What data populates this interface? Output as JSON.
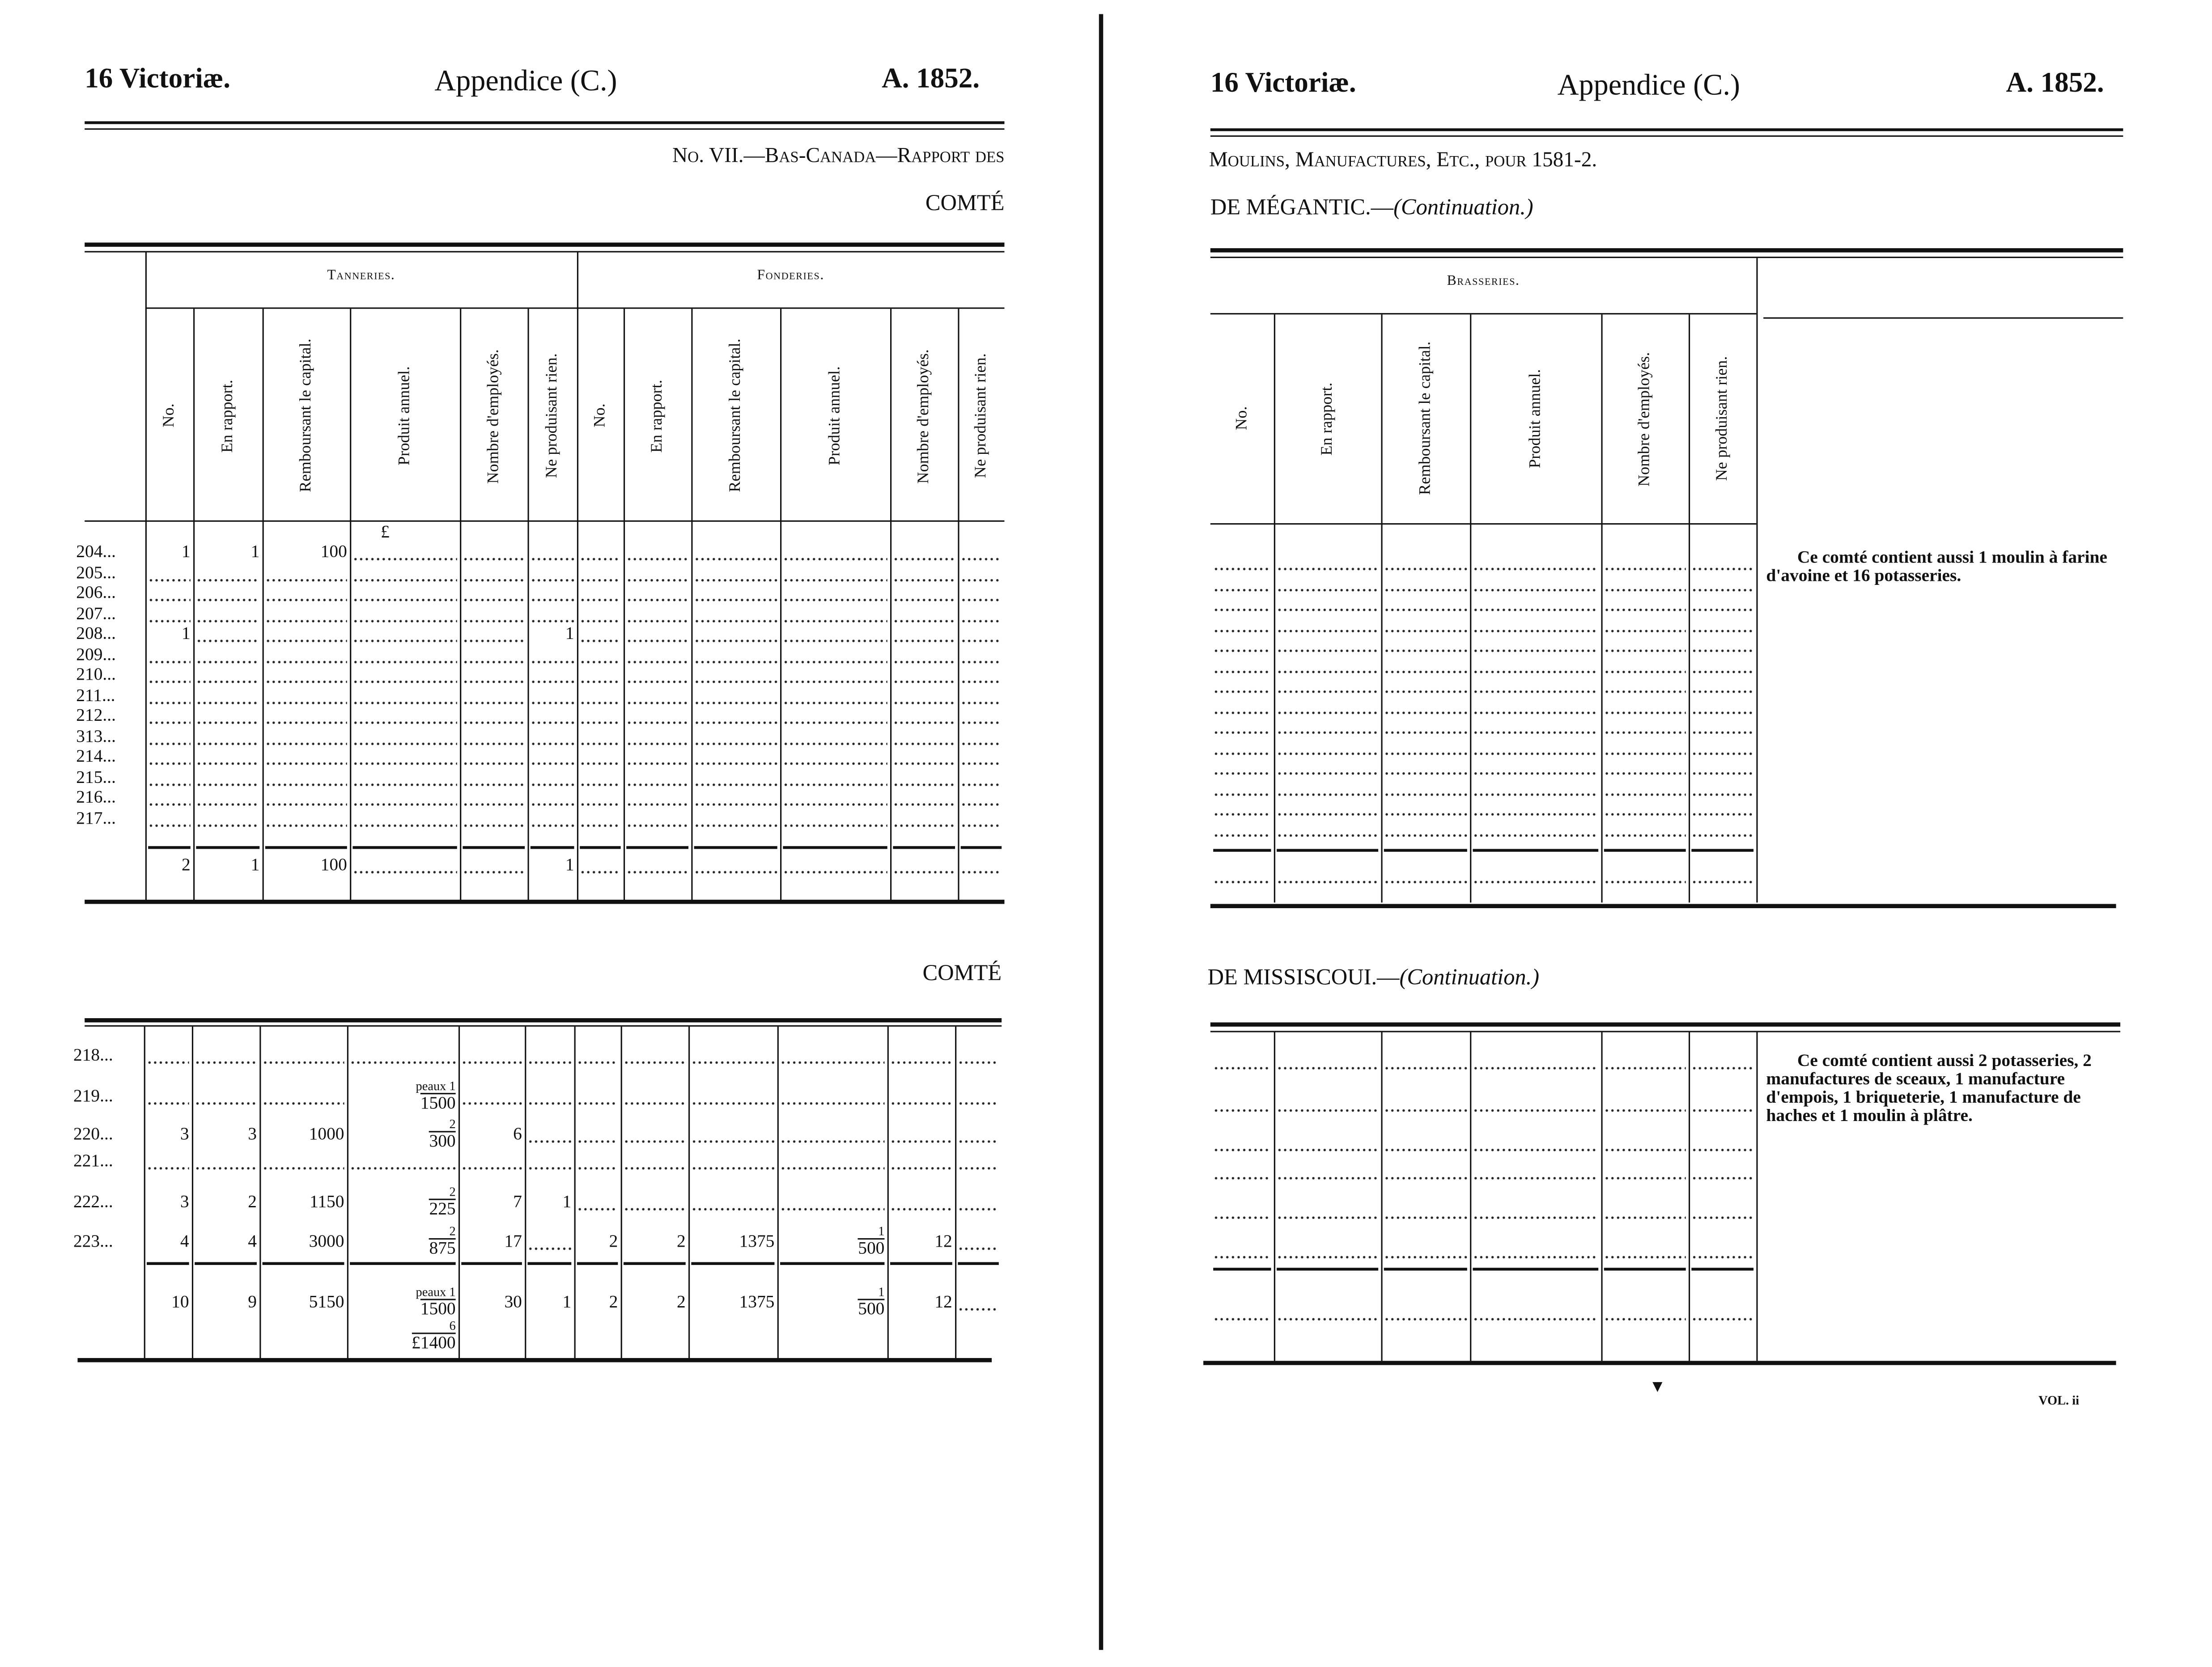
{
  "left_page": {
    "header": {
      "session": "16 Victoriæ.",
      "title": "Appendice (C.)",
      "year": "A. 1852."
    },
    "subtitle": "No. VII.—Bas-Canada—Rapport des",
    "section1": {
      "heading": "COMTÉ",
      "groups": [
        "Tanneries.",
        "Fonderies."
      ],
      "columns": [
        "No.",
        "En rapport.",
        "Remboursant le capital.",
        "Produit annuel.",
        "Nombre d'employés.",
        "Ne produisant rien.",
        "No.",
        "En rapport.",
        "Remboursant le capital.",
        "Produit annuel.",
        "Nombre d'employés.",
        "Ne produisant rien."
      ],
      "unit": "£",
      "rows": [
        {
          "label": "204...",
          "cells": [
            "1",
            "1",
            "100",
            "",
            "",
            "",
            "",
            "",
            "",
            "",
            "",
            ""
          ]
        },
        {
          "label": "205...",
          "cells": [
            "",
            "",
            "",
            "",
            "",
            "",
            "",
            "",
            "",
            "",
            "",
            ""
          ]
        },
        {
          "label": "206...",
          "cells": [
            "",
            "",
            "",
            "",
            "",
            "",
            "",
            "",
            "",
            "",
            "",
            ""
          ]
        },
        {
          "label": "207...",
          "cells": [
            "",
            "",
            "",
            "",
            "",
            "",
            "",
            "",
            "",
            "",
            "",
            ""
          ]
        },
        {
          "label": "208...",
          "cells": [
            "1",
            "",
            "",
            "",
            "",
            "1",
            "",
            "",
            "",
            "",
            "",
            ""
          ]
        },
        {
          "label": "209...",
          "cells": [
            "",
            "",
            "",
            "",
            "",
            "",
            "",
            "",
            "",
            "",
            "",
            ""
          ]
        },
        {
          "label": "210...",
          "cells": [
            "",
            "",
            "",
            "",
            "",
            "",
            "",
            "",
            "",
            "",
            "",
            ""
          ]
        },
        {
          "label": "211...",
          "cells": [
            "",
            "",
            "",
            "",
            "",
            "",
            "",
            "",
            "",
            "",
            "",
            ""
          ]
        },
        {
          "label": "212...",
          "cells": [
            "",
            "",
            "",
            "",
            "",
            "",
            "",
            "",
            "",
            "",
            "",
            ""
          ]
        },
        {
          "label": "313...",
          "cells": [
            "",
            "",
            "",
            "",
            "",
            "",
            "",
            "",
            "",
            "",
            "",
            ""
          ]
        },
        {
          "label": "214...",
          "cells": [
            "",
            "",
            "",
            "",
            "",
            "",
            "",
            "",
            "",
            "",
            "",
            ""
          ]
        },
        {
          "label": "215...",
          "cells": [
            "",
            "",
            "",
            "",
            "",
            "",
            "",
            "",
            "",
            "",
            "",
            ""
          ]
        },
        {
          "label": "216...",
          "cells": [
            "",
            "",
            "",
            "",
            "",
            "",
            "",
            "",
            "",
            "",
            "",
            ""
          ]
        },
        {
          "label": "217...",
          "cells": [
            "",
            "",
            "",
            "",
            "",
            "",
            "",
            "",
            "",
            "",
            "",
            ""
          ]
        }
      ],
      "total": [
        "2",
        "1",
        "100",
        "",
        "",
        "1",
        "",
        "",
        "",
        "",
        "",
        ""
      ]
    },
    "section2": {
      "heading": "COMTÉ",
      "rows": [
        {
          "label": "218...",
          "cells": [
            "",
            "",
            "",
            "",
            "",
            "",
            "",
            "",
            "",
            "",
            "",
            ""
          ]
        },
        {
          "label": "219...",
          "cells": [
            "",
            "",
            "",
            {
              "num": "peaux 1",
              "den": "1500"
            },
            "",
            "",
            "",
            "",
            "",
            "",
            "",
            ""
          ]
        },
        {
          "label": "220...",
          "cells": [
            "3",
            "3",
            "1000",
            {
              "num": "2",
              "den": "300"
            },
            "6",
            "",
            "",
            "",
            "",
            "",
            "",
            ""
          ]
        },
        {
          "label": "221...",
          "cells": [
            "",
            "",
            "",
            "",
            "",
            "",
            "",
            "",
            "",
            "",
            "",
            ""
          ]
        },
        {
          "label": "222...",
          "cells": [
            "3",
            "2",
            "1150",
            {
              "num": "2",
              "den": "225"
            },
            "7",
            "1",
            "",
            "",
            "",
            "",
            "",
            ""
          ]
        },
        {
          "label": "223...",
          "cells": [
            "4",
            "4",
            "3000",
            {
              "num": "2",
              "den": "875"
            },
            "17",
            "",
            "2",
            "2",
            "1375",
            {
              "num": "1",
              "den": "500"
            },
            "12",
            ""
          ]
        }
      ],
      "total": [
        "10",
        "9",
        "5150",
        {
          "num": "peaux 1",
          "den": "1500",
          "num2": "6",
          "den2": "£1400"
        },
        "30",
        "1",
        "2",
        "2",
        "1375",
        {
          "num": "1",
          "den": "500"
        },
        "12",
        ""
      ]
    }
  },
  "right_page": {
    "header": {
      "session": "16 Victoriæ.",
      "title": "Appendice (C.)",
      "year": "A. 1852."
    },
    "subtitle": "Moulins, Manufactures, Etc., pour 1581-2.",
    "section1": {
      "heading": "DE MÉGANTIC.—",
      "heading_italic": "(Continuation.)",
      "group": "Brasseries.",
      "columns": [
        "No.",
        "En rapport.",
        "Remboursant le capital.",
        "Produit annuel.",
        "Nombre d'employés.",
        "Ne produisant rien."
      ],
      "note": "Ce comté contient aussi 1 moulin à farine d'avoine et 16 potasseries."
    },
    "section2": {
      "heading": "DE MISSISCOUI.—",
      "heading_italic": "(Continuation.)",
      "note": "Ce comté contient aussi 2 potasseries, 2 manufactures de sceaux, 1 manufacture d'empois, 1 briqueterie, 1 manufacture de haches et 1 moulin à plâtre."
    },
    "footer": {
      "signature_mark": "▼",
      "volume": "VOL. ii"
    }
  },
  "colors": {
    "ink": "#111111",
    "paper": "#ffffff"
  }
}
